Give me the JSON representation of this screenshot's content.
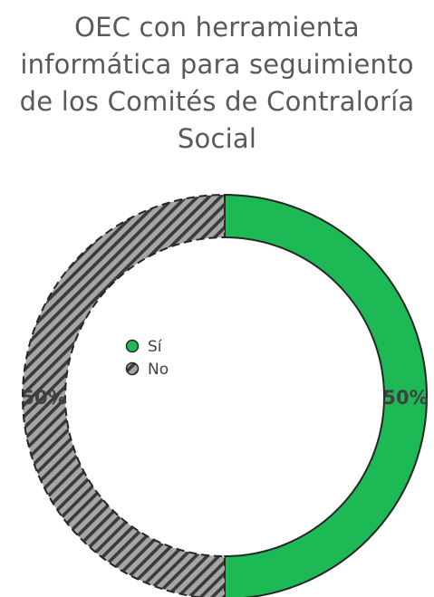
{
  "chart_data": {
    "type": "pie",
    "donut": true,
    "title_lines": [
      "OEC con herramienta",
      "informática para seguimiento",
      "de los Comités de Contraloría",
      "Social"
    ],
    "categories": [
      "Sí",
      "No"
    ],
    "values": [
      50,
      50
    ],
    "data_labels": [
      "50%",
      "50%"
    ],
    "legend": {
      "placement": "center",
      "entries": [
        "Sí",
        "No"
      ]
    },
    "colors": {
      "si": "#1db954",
      "no": "#a6a6a6",
      "no_hatch": "#3a3a3a",
      "outline": "#262626",
      "title": "#595959",
      "label": "#404040"
    }
  }
}
